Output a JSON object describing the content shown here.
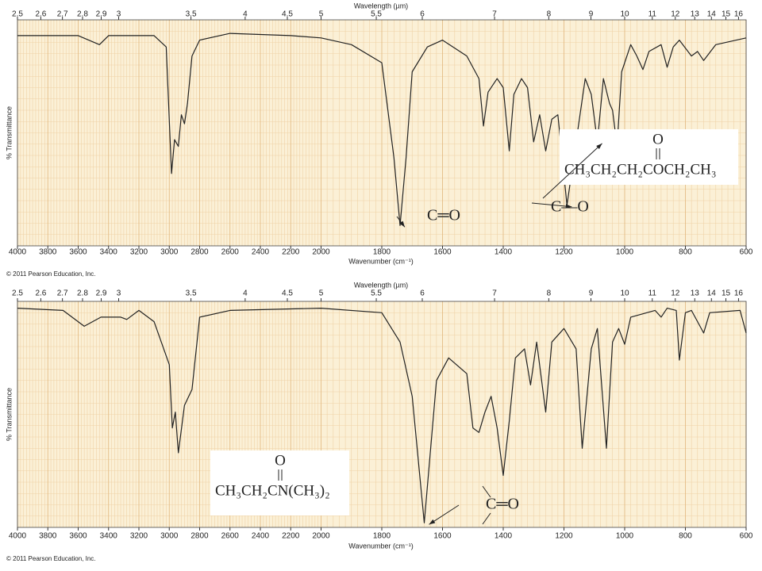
{
  "chart_data": [
    {
      "type": "line",
      "x_label": "Wavenumber (cm⁻¹)",
      "x2_label": "Wavelength (µm)",
      "y_label": "% Transmittance",
      "xlim": [
        4000,
        600
      ],
      "ylim": [
        0,
        100
      ],
      "x_scale_break": 2000,
      "xticks": [
        4000,
        3800,
        3600,
        3400,
        3200,
        3000,
        2800,
        2600,
        2400,
        2200,
        2000,
        1800,
        1600,
        1400,
        1200,
        1000,
        800,
        600
      ],
      "x2ticks": [
        2.5,
        2.6,
        2.7,
        2.8,
        2.9,
        3,
        3.5,
        4,
        4.5,
        5,
        5.5,
        6,
        7,
        8,
        9,
        10,
        11,
        12,
        13,
        14,
        15,
        16
      ],
      "series": [
        {
          "color": "#222222",
          "x": [
            4000,
            3600,
            3460,
            3400,
            3100,
            3020,
            2985,
            2965,
            2940,
            2920,
            2900,
            2880,
            2850,
            2800,
            2600,
            2200,
            2000,
            1900,
            1800,
            1760,
            1740,
            1720,
            1700,
            1650,
            1600,
            1520,
            1480,
            1465,
            1450,
            1420,
            1400,
            1380,
            1365,
            1340,
            1320,
            1300,
            1280,
            1260,
            1240,
            1220,
            1190,
            1160,
            1130,
            1110,
            1090,
            1070,
            1050,
            1040,
            1025,
            1010,
            980,
            960,
            940,
            920,
            880,
            860,
            840,
            820,
            780,
            760,
            740,
            700,
            600
          ],
          "values": [
            93,
            93,
            89,
            93,
            93,
            88,
            32,
            47,
            44,
            58,
            54,
            63,
            84,
            91,
            94,
            93,
            92,
            89,
            81,
            39,
            9,
            39,
            77,
            88,
            91,
            84,
            74,
            53,
            68,
            74,
            70,
            42,
            67,
            74,
            70,
            46,
            58,
            42,
            56,
            58,
            18,
            46,
            74,
            67,
            46,
            74,
            63,
            60,
            44,
            77,
            89,
            84,
            78,
            86,
            89,
            79,
            88,
            91,
            84,
            86,
            82,
            89,
            92
          ]
        }
      ],
      "annotations": [
        {
          "text": "C═O"
        },
        {
          "text": "C—O"
        }
      ],
      "structure": {
        "top": "O",
        "formula": "CH₃CH₂CH₂COCH₂CH₃"
      },
      "footer": "© 2011 Pearson Education, Inc."
    },
    {
      "type": "line",
      "x_label": "Wavenumber (cm⁻¹)",
      "x2_label": "Wavelength (µm)",
      "y_label": "% Transmittance",
      "xlim": [
        4000,
        600
      ],
      "ylim": [
        0,
        100
      ],
      "x_scale_break": 2000,
      "xticks": [
        4000,
        3800,
        3600,
        3400,
        3200,
        3000,
        2800,
        2600,
        2400,
        2200,
        2000,
        1800,
        1600,
        1400,
        1200,
        1000,
        800,
        600
      ],
      "x2ticks": [
        2.5,
        2.6,
        2.7,
        2.8,
        2.9,
        3,
        3.5,
        4,
        4.5,
        5,
        5.5,
        6,
        7,
        8,
        9,
        10,
        11,
        12,
        13,
        14,
        15,
        16
      ],
      "series": [
        {
          "color": "#222222",
          "x": [
            4000,
            3700,
            3560,
            3450,
            3320,
            3280,
            3200,
            3100,
            3000,
            2980,
            2960,
            2940,
            2900,
            2850,
            2800,
            2600,
            2000,
            1800,
            1740,
            1700,
            1660,
            1620,
            1580,
            1520,
            1500,
            1480,
            1460,
            1440,
            1420,
            1400,
            1380,
            1360,
            1330,
            1310,
            1290,
            1260,
            1240,
            1200,
            1160,
            1140,
            1110,
            1090,
            1060,
            1040,
            1020,
            1000,
            980,
            900,
            880,
            860,
            830,
            820,
            800,
            780,
            740,
            720,
            620,
            600
          ],
          "values": [
            97,
            96,
            89,
            93,
            93,
            92,
            96,
            91,
            72,
            44,
            51,
            33,
            54,
            61,
            93,
            96,
            97,
            95,
            82,
            58,
            2,
            65,
            75,
            68,
            44,
            42,
            51,
            58,
            44,
            23,
            47,
            75,
            79,
            63,
            82,
            51,
            82,
            88,
            79,
            35,
            79,
            88,
            35,
            82,
            88,
            81,
            93,
            96,
            93,
            97,
            96,
            74,
            95,
            96,
            86,
            95,
            96,
            86
          ]
        }
      ],
      "annotations": [
        {
          "text": "C═O"
        }
      ],
      "structure": {
        "top": "O",
        "formula": "CH₃CH₂CN(CH₃)₂"
      },
      "footer": "© 2011 Pearson Education, Inc."
    }
  ]
}
